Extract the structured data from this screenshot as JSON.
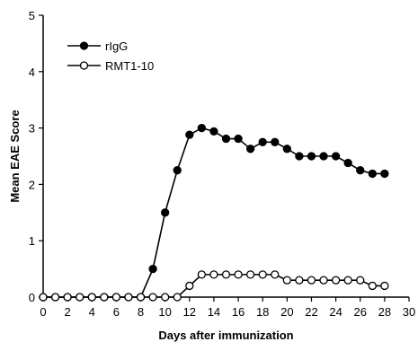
{
  "chart_data": {
    "type": "line",
    "xlabel": "Days after immunization",
    "ylabel": "Mean EAE Score",
    "xlim": [
      0,
      30
    ],
    "ylim": [
      0,
      5
    ],
    "xticks": [
      0,
      2,
      4,
      6,
      8,
      10,
      12,
      14,
      16,
      18,
      20,
      22,
      24,
      26,
      28,
      30
    ],
    "yticks": [
      0,
      1,
      2,
      3,
      4,
      5
    ],
    "grid": false,
    "legend_position": "top-left",
    "x": [
      0,
      1,
      2,
      3,
      4,
      5,
      6,
      7,
      8,
      9,
      10,
      11,
      12,
      13,
      14,
      15,
      16,
      17,
      18,
      19,
      20,
      21,
      22,
      23,
      24,
      25,
      26,
      27,
      28
    ],
    "series": [
      {
        "name": "rIgG",
        "marker": "filled-circle",
        "color": "#000000",
        "values": [
          0,
          0,
          0,
          0,
          0,
          0,
          0,
          0,
          0,
          0.5,
          1.5,
          2.25,
          2.88,
          3.0,
          2.94,
          2.81,
          2.81,
          2.63,
          2.75,
          2.75,
          2.63,
          2.5,
          2.5,
          2.5,
          2.5,
          2.38,
          2.25,
          2.19,
          2.19
        ]
      },
      {
        "name": "RMT1-10",
        "marker": "open-circle",
        "color": "#000000",
        "values": [
          0,
          0,
          0,
          0,
          0,
          0,
          0,
          0,
          0,
          0,
          0,
          0,
          0.2,
          0.4,
          0.4,
          0.4,
          0.4,
          0.4,
          0.4,
          0.4,
          0.3,
          0.3,
          0.3,
          0.3,
          0.3,
          0.3,
          0.3,
          0.2,
          0.2
        ]
      }
    ]
  }
}
